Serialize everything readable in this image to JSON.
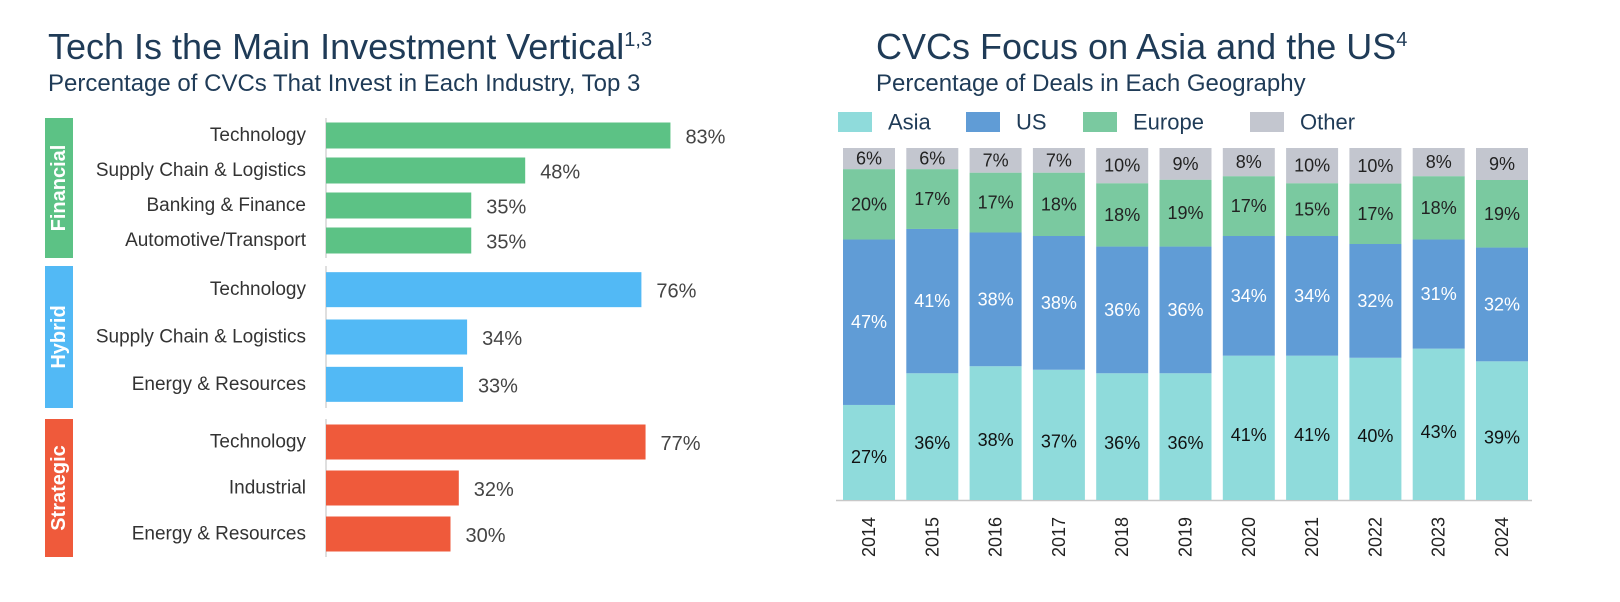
{
  "left": {
    "title": "Tech Is the Main Investment Vertical",
    "title_sup": "1,3",
    "subtitle": "Percentage of CVCs That Invest in Each Industry, Top 3"
  },
  "right": {
    "title": "CVCs Focus on Asia and the US",
    "title_sup": "4",
    "subtitle": "Percentage of Deals in Each Geography"
  },
  "chart_data": [
    {
      "type": "bar",
      "orientation": "horizontal",
      "groups": [
        {
          "name": "Financial",
          "color": "#5cc285",
          "categories": [
            "Technology",
            "Supply Chain & Logistics",
            "Banking & Finance",
            "Automotive/Transport"
          ],
          "values": [
            83,
            48,
            35,
            35
          ],
          "labels": [
            "83%",
            "48%",
            "35%",
            "35%"
          ]
        },
        {
          "name": "Hybrid",
          "color": "#52b9f5",
          "categories": [
            "Technology",
            "Supply Chain & Logistics",
            "Energy & Resources"
          ],
          "values": [
            76,
            34,
            33
          ],
          "labels": [
            "76%",
            "34%",
            "33%"
          ]
        },
        {
          "name": "Strategic",
          "color": "#ef5a3b",
          "categories": [
            "Technology",
            "Industrial",
            "Energy & Resources"
          ],
          "values": [
            77,
            32,
            30
          ],
          "labels": [
            "77%",
            "32%",
            "30%"
          ]
        }
      ],
      "xlim": [
        0,
        100
      ],
      "grid": false
    },
    {
      "type": "bar",
      "stacked": true,
      "percent": true,
      "categories": [
        "2014",
        "2015",
        "2016",
        "2017",
        "2018",
        "2019",
        "2020",
        "2021",
        "2022",
        "2023",
        "2024"
      ],
      "series": [
        {
          "name": "Asia",
          "color": "#8fdbdb",
          "label_color": "#111111",
          "values": [
            27,
            36,
            38,
            37,
            36,
            36,
            41,
            41,
            40,
            43,
            39
          ],
          "labels": [
            "27%",
            "36%",
            "38%",
            "37%",
            "36%",
            "36%",
            "41%",
            "41%",
            "40%",
            "43%",
            "39%"
          ]
        },
        {
          "name": "US",
          "color": "#609cd6",
          "label_color": "#ffffff",
          "values": [
            47,
            41,
            38,
            38,
            36,
            36,
            34,
            34,
            32,
            31,
            32
          ],
          "labels": [
            "47%",
            "41%",
            "38%",
            "38%",
            "36%",
            "36%",
            "34%",
            "34%",
            "32%",
            "31%",
            "32%"
          ]
        },
        {
          "name": "Europe",
          "color": "#7ac9a0",
          "label_color": "#222222",
          "values": [
            20,
            17,
            17,
            18,
            18,
            19,
            17,
            15,
            17,
            18,
            19
          ],
          "labels": [
            "20%",
            "17%",
            "17%",
            "18%",
            "18%",
            "19%",
            "17%",
            "15%",
            "17%",
            "18%",
            "19%"
          ]
        },
        {
          "name": "Other",
          "color": "#c3c6cf",
          "label_color": "#222222",
          "values": [
            6,
            6,
            7,
            7,
            10,
            9,
            8,
            10,
            10,
            8,
            9
          ],
          "labels": [
            "6%",
            "6%",
            "7%",
            "7%",
            "10%",
            "9%",
            "8%",
            "10%",
            "10%",
            "8%",
            "9%"
          ]
        }
      ],
      "ylim": [
        0,
        100
      ],
      "legend": "top-left",
      "grid": false
    }
  ]
}
